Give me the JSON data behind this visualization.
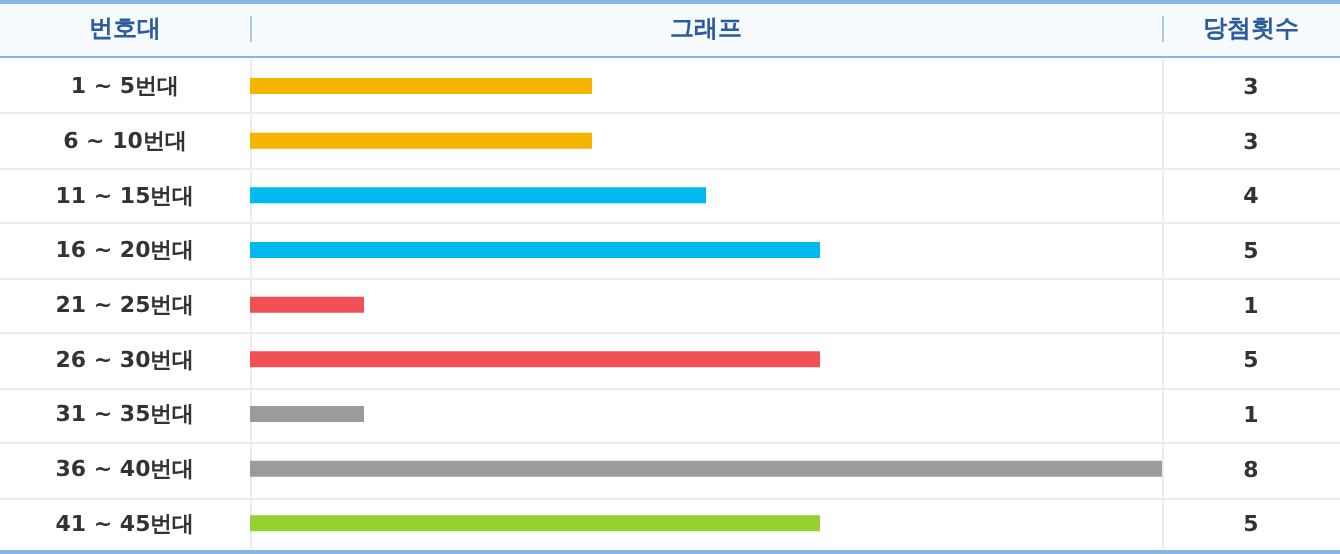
{
  "chart_data": {
    "type": "bar",
    "orientation": "horizontal",
    "ylabel": "번호대",
    "xlabel": "그래프",
    "y2label": "당첨횟수",
    "categories": [
      "1 ~ 5번대",
      "6 ~ 10번대",
      "11 ~ 15번대",
      "16 ~ 20번대",
      "21 ~ 25번대",
      "26 ~ 30번대",
      "31 ~ 35번대",
      "36 ~ 40번대",
      "41 ~ 45번대"
    ],
    "values": [
      3,
      3,
      4,
      5,
      1,
      5,
      1,
      8,
      5
    ],
    "colors": [
      "#f5b400",
      "#f5b400",
      "#00b9ef",
      "#00b9ef",
      "#ef5157",
      "#ef5157",
      "#9b9b9b",
      "#9b9b9b",
      "#94d130"
    ],
    "data_labels": true
  }
}
